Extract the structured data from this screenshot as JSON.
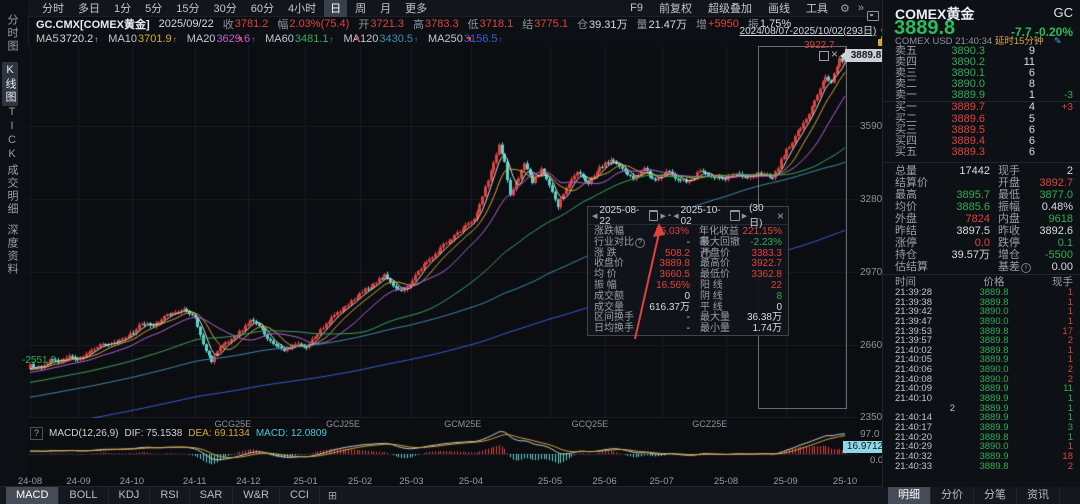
{
  "toolbar": {
    "periods": [
      "分时",
      "多日",
      "1分",
      "5分",
      "15分",
      "30分",
      "60分",
      "4小时",
      "日",
      "周",
      "月",
      "更多"
    ],
    "selected_period": "日",
    "right_items": [
      "F9",
      "前复权",
      "超级叠加",
      "画线",
      "工具"
    ]
  },
  "symbol_bar": {
    "fields": [
      {
        "label": "",
        "value": "GC.CMX[COMEX黄金]",
        "c": "title"
      },
      {
        "label": "",
        "value": "2025/09/22",
        "c": "wh"
      },
      {
        "label": "收",
        "value": "3781.2",
        "c": "red"
      },
      {
        "label": "幅",
        "value": "2.03%(75.4)",
        "c": "red"
      },
      {
        "label": "开",
        "value": "3721.3",
        "c": "red"
      },
      {
        "label": "高",
        "value": "3783.3",
        "c": "red"
      },
      {
        "label": "低",
        "value": "3718.1",
        "c": "red"
      },
      {
        "label": "结",
        "value": "3775.1",
        "c": "red"
      },
      {
        "label": "仓",
        "value": "39.31万",
        "c": "wh"
      },
      {
        "label": "量",
        "value": "21.47万",
        "c": "wh"
      },
      {
        "label": "增",
        "value": "+5950",
        "c": "red"
      },
      {
        "label": "振",
        "value": "1.75%",
        "c": "wh"
      }
    ]
  },
  "ma_bar": [
    {
      "label": "MA5",
      "value": "3720.2",
      "c": "ma5"
    },
    {
      "label": "MA10",
      "value": "3701.9",
      "c": "ma10"
    },
    {
      "label": "MA20",
      "value": "3629.6",
      "c": "ma20"
    },
    {
      "label": "MA60",
      "value": "3481.1",
      "c": "ma60"
    },
    {
      "label": "MA120",
      "value": "3430.5",
      "c": "ma120"
    },
    {
      "label": "MA250",
      "value": "3156.5",
      "c": "ma250"
    }
  ],
  "date_range": {
    "text": "2024/08/07-2025/10/02(293日)"
  },
  "sidebar": {
    "items": [
      {
        "label": "分时图",
        "selected": false
      },
      {
        "label": "K线图",
        "selected": true
      },
      {
        "label": "TICK",
        "selected": false
      },
      {
        "label": "成交明细",
        "selected": false
      },
      {
        "label": "深度资料",
        "selected": false
      }
    ]
  },
  "chart": {
    "y_axis": [
      "3590",
      "3280",
      "2970",
      "2660",
      "2350"
    ],
    "price_badge": "3889.8",
    "high_label": "3922.7",
    "low_label": "2551.2"
  },
  "tooltip": {
    "start": "2025-08-22",
    "end": "2025-10-02",
    "days": "(30日)",
    "rows": [
      {
        "l1": "涨跌幅",
        "v1": "15.03%",
        "c1": "red",
        "l2": "年化收益率",
        "v2": "221.15%",
        "c2": "red"
      },
      {
        "l1": "行业对比",
        "i1": true,
        "v1": "-",
        "c1": "wh",
        "l2": "最大回撤",
        "i2": true,
        "v2": "-2.23%",
        "c2": "green"
      },
      {
        "l1": "涨 跌",
        "v1": "508.2",
        "c1": "red",
        "l2": "开盘价",
        "v2": "3383.3",
        "c2": "red"
      },
      {
        "l1": "收盘价",
        "v1": "3889.8",
        "c1": "red",
        "l2": "最高价",
        "v2": "3922.7",
        "c2": "red"
      },
      {
        "l1": "均 价",
        "v1": "3660.5",
        "c1": "red",
        "l2": "最低价",
        "v2": "3362.8",
        "c2": "red"
      },
      {
        "l1": "振 幅",
        "v1": "16.56%",
        "c1": "red",
        "l2": "阳 线",
        "v2": "22",
        "c2": "red"
      },
      {
        "l1": "成交额",
        "v1": "0",
        "c1": "wh",
        "l2": "阴 线",
        "v2": "8",
        "c2": "green"
      },
      {
        "l1": "成交量",
        "v1": "616.37万",
        "c1": "wh",
        "l2": "平 线",
        "v2": "0",
        "c2": "wh"
      },
      {
        "l1": "区间换手",
        "v1": "-",
        "c1": "wh",
        "l2": "最大量",
        "v2": "36.38万",
        "c2": "wh"
      },
      {
        "l1": "日均换手",
        "v1": "-",
        "c1": "wh",
        "l2": "最小量",
        "v2": "1.74万",
        "c2": "wh"
      }
    ]
  },
  "macd": {
    "help": "?",
    "params": "MACD(12,26,9)",
    "dif_label": "DIF: 75.1538",
    "dea_label": "DEA: 69.1134",
    "macd_label": "MACD: 12.0809",
    "scale_top": "97.0",
    "scale_badge": "16.9712",
    "scale_zero": "0.0"
  },
  "indicator_tabs": {
    "items": [
      "MACD",
      "BOLL",
      "KDJ",
      "RSI",
      "SAR",
      "W&R",
      "CCI"
    ],
    "selected": "MACD"
  },
  "right_panel": {
    "header": {
      "name": "COMEX黄金",
      "code": "GC",
      "price": "3889.8",
      "change": "-7.7",
      "pct": "-0.20%",
      "exchange": "COMEX",
      "currency": "USD",
      "time": "21:40:34",
      "delay": "延时15分钟"
    },
    "order_book": [
      {
        "label": "卖五",
        "price": "3890.3",
        "pc": "green",
        "vol": "9",
        "delta": "",
        "dc": "wh"
      },
      {
        "label": "卖四",
        "price": "3890.2",
        "pc": "green",
        "vol": "11",
        "delta": "",
        "dc": "wh"
      },
      {
        "label": "卖三",
        "price": "3890.1",
        "pc": "green",
        "vol": "6",
        "delta": "",
        "dc": "wh"
      },
      {
        "label": "卖二",
        "price": "3890.0",
        "pc": "green",
        "vol": "8",
        "delta": "",
        "dc": "wh"
      },
      {
        "label": "卖一",
        "price": "3889.9",
        "pc": "green",
        "vol": "1",
        "delta": "-3",
        "dc": "green"
      },
      {
        "label": "买一",
        "price": "3889.7",
        "pc": "red",
        "vol": "4",
        "delta": "+3",
        "dc": "red"
      },
      {
        "label": "买二",
        "price": "3889.6",
        "pc": "red",
        "vol": "5",
        "delta": "",
        "dc": "wh"
      },
      {
        "label": "买三",
        "price": "3889.5",
        "pc": "red",
        "vol": "6",
        "delta": "",
        "dc": "wh"
      },
      {
        "label": "买四",
        "price": "3889.4",
        "pc": "red",
        "vol": "6",
        "delta": "",
        "dc": "wh"
      },
      {
        "label": "买五",
        "price": "3889.3",
        "pc": "red",
        "vol": "6",
        "delta": "",
        "dc": "wh"
      }
    ],
    "stats": [
      {
        "l1": "总量",
        "v1": "17442",
        "c1": "wh",
        "l2": "现手",
        "v2": "2",
        "c2": "wh"
      },
      {
        "l1": "结算价",
        "v1": "",
        "c1": "wh",
        "l2": "开盘",
        "v2": "3892.7",
        "c2": "red"
      },
      {
        "l1": "最高",
        "v1": "3895.7",
        "c1": "green",
        "l2": "最低",
        "v2": "3877.0",
        "c2": "green"
      },
      {
        "l1": "均价",
        "v1": "3885.6",
        "c1": "green",
        "l2": "振幅",
        "v2": "0.48%",
        "c2": "wh"
      },
      {
        "l1": "外盘",
        "v1": "7824",
        "c1": "red",
        "l2": "内盘",
        "v2": "9618",
        "c2": "green"
      },
      {
        "l1": "昨结",
        "v1": "3897.5",
        "c1": "wh",
        "l2": "昨收",
        "v2": "3892.6",
        "c2": "wh"
      },
      {
        "l1": "涨停",
        "v1": "0.0",
        "c1": "red",
        "l2": "跌停",
        "v2": "0.1",
        "c2": "green"
      },
      {
        "l1": "持仓",
        "v1": "39.57万",
        "c1": "wh",
        "l2": "增仓",
        "v2": "-5500",
        "c2": "green"
      },
      {
        "l1": "估结算",
        "v1": "",
        "c1": "wh",
        "l2": "基差",
        "i2": true,
        "v2": "0.00",
        "c2": "wh"
      }
    ],
    "time_sales": {
      "headers": [
        "时间",
        "价格",
        "现手"
      ],
      "rows": [
        {
          "t": "21:39:28",
          "p": "3889.8",
          "vc": "red",
          "v": "1"
        },
        {
          "t": "21:39:38",
          "p": "3889.8",
          "vc": "red",
          "v": "1"
        },
        {
          "t": "21:39:42",
          "p": "3890.0",
          "vc": "red",
          "v": "1"
        },
        {
          "t": "21:39:47",
          "p": "3890.0",
          "vc": "red",
          "v": "1"
        },
        {
          "t": "21:39:53",
          "p": "3889.8",
          "vc": "red",
          "v": "17"
        },
        {
          "t": "21:39:57",
          "p": "3889.8",
          "vc": "red",
          "v": "2"
        },
        {
          "t": "21:40:02",
          "p": "3889.8",
          "vc": "red",
          "v": "1"
        },
        {
          "t": "21:40:05",
          "p": "3889.9",
          "vc": "red",
          "v": "1"
        },
        {
          "t": "21:40:06",
          "p": "3890.0",
          "vc": "red",
          "v": "2"
        },
        {
          "t": "21:40:08",
          "p": "3890.0",
          "vc": "red",
          "v": "2"
        },
        {
          "t": "21:40:09",
          "p": "3889.9",
          "vc": "green",
          "v": "11"
        },
        {
          "t": "21:40:10",
          "p": "3889.9",
          "vc": "green",
          "v": "1"
        },
        {
          "t": "2",
          "p": "3889.9",
          "vc": "green",
          "v": "1"
        },
        {
          "t": "21:40:14",
          "p": "3889.9",
          "vc": "green",
          "v": "1"
        },
        {
          "t": "21:40:17",
          "p": "3889.9",
          "vc": "green",
          "v": "3"
        },
        {
          "t": "21:40:20",
          "p": "3889.8",
          "vc": "green",
          "v": "1"
        },
        {
          "t": "21:40:29",
          "p": "3890.0",
          "vc": "red",
          "v": "1"
        },
        {
          "t": "21:40:32",
          "p": "3889.9",
          "vc": "red",
          "v": "18"
        },
        {
          "t": "21:40:33",
          "p": "3889.8",
          "vc": "red",
          "v": "2"
        }
      ]
    },
    "tabs": {
      "items": [
        "明细",
        "分价",
        "分笔",
        "资讯"
      ],
      "selected": "明细"
    }
  },
  "chart_data": {
    "type": "candlestick",
    "symbol": "GC.CMX COMEX黄金 日线",
    "x_range": [
      "2024-08-07",
      "2025-10-02"
    ],
    "days": 293,
    "y_axis_ticks": [
      3590,
      3280,
      2970,
      2660,
      2350
    ],
    "last_close": 3889.8,
    "period_high": 3922.7,
    "period_low": 2551.2,
    "colors": {
      "up": "#e0433e",
      "down": "#5fd4cb",
      "grid": "#181d24",
      "dif": "#c9ced6",
      "dea": "#d7a83c"
    },
    "ma_colors": {
      "ma5": "#d8dce0",
      "ma10": "#d7a83c",
      "ma20": "#bb62d6",
      "ma60": "#3fa75c",
      "ma120": "#418fb0",
      "ma250": "#3c5ed8"
    },
    "anchors": [
      [
        0,
        2575
      ],
      [
        2,
        2560
      ],
      [
        4,
        2558
      ],
      [
        7,
        2600
      ],
      [
        10,
        2585
      ],
      [
        14,
        2612
      ],
      [
        17,
        2592
      ],
      [
        21,
        2632
      ],
      [
        26,
        2662
      ],
      [
        31,
        2668
      ],
      [
        36,
        2702
      ],
      [
        40,
        2752
      ],
      [
        44,
        2738
      ],
      [
        48,
        2778
      ],
      [
        52,
        2798
      ],
      [
        56,
        2808
      ],
      [
        59,
        2768
      ],
      [
        62,
        2658
      ],
      [
        65,
        2588
      ],
      [
        68,
        2648
      ],
      [
        72,
        2680
      ],
      [
        76,
        2722
      ],
      [
        79,
        2760
      ],
      [
        82,
        2742
      ],
      [
        85,
        2684
      ],
      [
        88,
        2658
      ],
      [
        91,
        2634
      ],
      [
        95,
        2662
      ],
      [
        99,
        2650
      ],
      [
        103,
        2708
      ],
      [
        107,
        2762
      ],
      [
        111,
        2802
      ],
      [
        115,
        2842
      ],
      [
        119,
        2882
      ],
      [
        123,
        2922
      ],
      [
        127,
        2952
      ],
      [
        130,
        2908
      ],
      [
        133,
        2892
      ],
      [
        136,
        2914
      ],
      [
        140,
        2988
      ],
      [
        144,
        3032
      ],
      [
        148,
        3082
      ],
      [
        152,
        3122
      ],
      [
        156,
        3162
      ],
      [
        159,
        3192
      ],
      [
        162,
        3292
      ],
      [
        165,
        3402
      ],
      [
        167,
        3462
      ],
      [
        168,
        3502
      ],
      [
        170,
        3432
      ],
      [
        172,
        3302
      ],
      [
        174,
        3348
      ],
      [
        177,
        3428
      ],
      [
        180,
        3352
      ],
      [
        183,
        3402
      ],
      [
        186,
        3332
      ],
      [
        189,
        3252
      ],
      [
        192,
        3322
      ],
      [
        196,
        3398
      ],
      [
        200,
        3348
      ],
      [
        204,
        3408
      ],
      [
        208,
        3448
      ],
      [
        212,
        3402
      ],
      [
        216,
        3362
      ],
      [
        220,
        3408
      ],
      [
        224,
        3352
      ],
      [
        228,
        3398
      ],
      [
        232,
        3362
      ],
      [
        236,
        3348
      ],
      [
        240,
        3398
      ],
      [
        244,
        3378
      ],
      [
        248,
        3358
      ],
      [
        252,
        3382
      ],
      [
        256,
        3374
      ],
      [
        260,
        3386
      ],
      [
        263,
        3382
      ],
      [
        266,
        3370
      ],
      [
        269,
        3442
      ],
      [
        272,
        3508
      ],
      [
        275,
        3562
      ],
      [
        278,
        3622
      ],
      [
        281,
        3702
      ],
      [
        283,
        3758
      ],
      [
        285,
        3795
      ],
      [
        287,
        3778
      ],
      [
        288,
        3808
      ],
      [
        289,
        3848
      ],
      [
        290,
        3878
      ],
      [
        291,
        3855
      ],
      [
        292,
        3889.8
      ]
    ],
    "months": [
      {
        "label": "24-08",
        "t": 0.0
      },
      {
        "label": "24-09",
        "t": 0.0595
      },
      {
        "label": "24-10",
        "t": 0.125
      },
      {
        "label": "24-11",
        "t": 0.202
      },
      {
        "label": "24-12",
        "t": 0.268
      },
      {
        "label": "25-01",
        "t": 0.338
      },
      {
        "label": "25-02",
        "t": 0.405
      },
      {
        "label": "25-03",
        "t": 0.468
      },
      {
        "label": "25-04",
        "t": 0.541
      },
      {
        "label": "25-05",
        "t": 0.638
      },
      {
        "label": "25-06",
        "t": 0.705
      },
      {
        "label": "25-07",
        "t": 0.775
      },
      {
        "label": "25-08",
        "t": 0.854
      },
      {
        "label": "25-09",
        "t": 0.927
      },
      {
        "label": "25-10",
        "t": 1.0
      }
    ],
    "contracts": [
      {
        "label": "GCG25E",
        "t": 0.249
      },
      {
        "label": "GCJ25E",
        "t": 0.384
      },
      {
        "label": "GCM25E",
        "t": 0.531
      },
      {
        "label": "GCQ25E",
        "t": 0.687
      },
      {
        "label": "GCZ25E",
        "t": 0.834
      }
    ],
    "roll_flags": [
      0.254,
      0.398,
      0.535
    ],
    "selection": {
      "t0": 0.893,
      "t1": 1.0,
      "start": "2025-08-22",
      "end": "2025-10-02"
    },
    "macd": {
      "dif": 75.1538,
      "dea": 69.1134,
      "macd": 12.0809,
      "scale_top": 97.0
    }
  }
}
